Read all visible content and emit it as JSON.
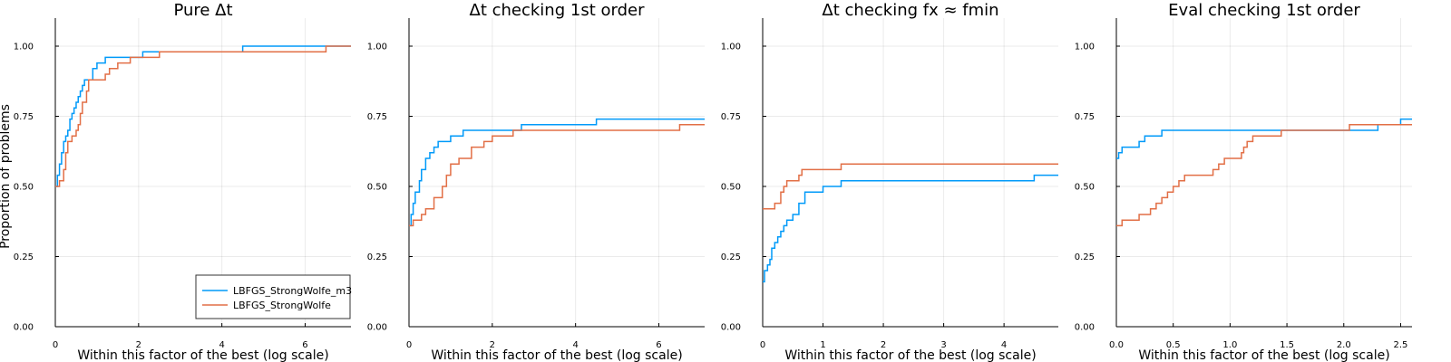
{
  "figure": {
    "ylabel": "Proportion of problems",
    "xlabel": "Within this factor of the best (log scale)",
    "legend": {
      "placement": "bottom-right",
      "entries": [
        "LBFGS_StrongWolfe_m3",
        "LBFGS_StrongWolfe"
      ]
    },
    "colors": {
      "LBFGS_StrongWolfe_m3": "#009af9",
      "LBFGS_StrongWolfe": "#e26f46"
    }
  },
  "chart_data": [
    {
      "type": "line",
      "title": "Pure Δt",
      "xlim": [
        0,
        7.1
      ],
      "ylim": [
        0,
        1.1
      ],
      "xticks": [
        0,
        2,
        4,
        6
      ],
      "xtick_labels": [
        "0",
        "2",
        "4",
        "6"
      ],
      "yticks": [
        0,
        0.25,
        0.5,
        0.75,
        1.0
      ],
      "ytick_labels": [
        "0.00",
        "0.25",
        "0.50",
        "0.75",
        "1.00"
      ],
      "grid": true,
      "series": [
        {
          "name": "LBFGS_StrongWolfe_m3",
          "color": "#009af9",
          "points": [
            [
              0,
              0.5
            ],
            [
              0.05,
              0.54
            ],
            [
              0.1,
              0.58
            ],
            [
              0.15,
              0.62
            ],
            [
              0.2,
              0.66
            ],
            [
              0.25,
              0.68
            ],
            [
              0.3,
              0.7
            ],
            [
              0.35,
              0.74
            ],
            [
              0.4,
              0.76
            ],
            [
              0.45,
              0.78
            ],
            [
              0.5,
              0.8
            ],
            [
              0.55,
              0.82
            ],
            [
              0.6,
              0.84
            ],
            [
              0.65,
              0.86
            ],
            [
              0.7,
              0.88
            ],
            [
              0.9,
              0.92
            ],
            [
              1.0,
              0.94
            ],
            [
              1.2,
              0.96
            ],
            [
              1.6,
              0.96
            ],
            [
              2.1,
              0.98
            ],
            [
              4.5,
              1.0
            ],
            [
              7.1,
              1.0
            ]
          ]
        },
        {
          "name": "LBFGS_StrongWolfe",
          "color": "#e26f46",
          "points": [
            [
              0,
              0.5
            ],
            [
              0.1,
              0.52
            ],
            [
              0.2,
              0.56
            ],
            [
              0.25,
              0.62
            ],
            [
              0.3,
              0.66
            ],
            [
              0.4,
              0.68
            ],
            [
              0.5,
              0.7
            ],
            [
              0.55,
              0.72
            ],
            [
              0.6,
              0.76
            ],
            [
              0.65,
              0.8
            ],
            [
              0.75,
              0.84
            ],
            [
              0.8,
              0.88
            ],
            [
              1.2,
              0.9
            ],
            [
              1.3,
              0.92
            ],
            [
              1.5,
              0.94
            ],
            [
              1.8,
              0.96
            ],
            [
              2.5,
              0.98
            ],
            [
              6.5,
              1.0
            ],
            [
              7.1,
              1.0
            ]
          ]
        }
      ]
    },
    {
      "type": "line",
      "title": "Δt checking 1st order",
      "xlim": [
        0,
        7.1
      ],
      "ylim": [
        0,
        1.1
      ],
      "xticks": [
        0,
        2,
        4,
        6
      ],
      "xtick_labels": [
        "0",
        "2",
        "4",
        "6"
      ],
      "yticks": [
        0,
        0.25,
        0.5,
        0.75,
        1.0
      ],
      "ytick_labels": [
        "0.00",
        "0.25",
        "0.50",
        "0.75",
        "1.00"
      ],
      "grid": true,
      "series": [
        {
          "name": "LBFGS_StrongWolfe_m3",
          "color": "#009af9",
          "points": [
            [
              0,
              0.36
            ],
            [
              0.05,
              0.4
            ],
            [
              0.1,
              0.44
            ],
            [
              0.15,
              0.48
            ],
            [
              0.25,
              0.52
            ],
            [
              0.3,
              0.56
            ],
            [
              0.4,
              0.6
            ],
            [
              0.5,
              0.62
            ],
            [
              0.6,
              0.64
            ],
            [
              0.7,
              0.66
            ],
            [
              1.0,
              0.68
            ],
            [
              1.3,
              0.7
            ],
            [
              2.7,
              0.72
            ],
            [
              4.5,
              0.74
            ],
            [
              7.1,
              0.74
            ]
          ]
        },
        {
          "name": "LBFGS_StrongWolfe",
          "color": "#e26f46",
          "points": [
            [
              0,
              0.36
            ],
            [
              0.1,
              0.38
            ],
            [
              0.3,
              0.4
            ],
            [
              0.4,
              0.42
            ],
            [
              0.6,
              0.46
            ],
            [
              0.8,
              0.5
            ],
            [
              0.9,
              0.54
            ],
            [
              1.0,
              0.58
            ],
            [
              1.2,
              0.6
            ],
            [
              1.5,
              0.64
            ],
            [
              1.8,
              0.66
            ],
            [
              2.0,
              0.68
            ],
            [
              2.5,
              0.7
            ],
            [
              6.5,
              0.72
            ],
            [
              7.1,
              0.72
            ]
          ]
        }
      ]
    },
    {
      "type": "line",
      "title": "Δt checking fx ≈ fmin",
      "xlim": [
        0,
        4.9
      ],
      "ylim": [
        0,
        1.1
      ],
      "xticks": [
        0,
        1,
        2,
        3,
        4
      ],
      "xtick_labels": [
        "0",
        "1",
        "2",
        "3",
        "4"
      ],
      "yticks": [
        0,
        0.25,
        0.5,
        0.75,
        1.0
      ],
      "ytick_labels": [
        "0.00",
        "0.25",
        "0.50",
        "0.75",
        "1.00"
      ],
      "grid": true,
      "series": [
        {
          "name": "LBFGS_StrongWolfe_m3",
          "color": "#009af9",
          "points": [
            [
              0,
              0.16
            ],
            [
              0.03,
              0.2
            ],
            [
              0.08,
              0.22
            ],
            [
              0.12,
              0.24
            ],
            [
              0.15,
              0.28
            ],
            [
              0.2,
              0.3
            ],
            [
              0.25,
              0.32
            ],
            [
              0.3,
              0.34
            ],
            [
              0.35,
              0.36
            ],
            [
              0.4,
              0.38
            ],
            [
              0.5,
              0.4
            ],
            [
              0.6,
              0.44
            ],
            [
              0.7,
              0.48
            ],
            [
              1.0,
              0.5
            ],
            [
              1.3,
              0.52
            ],
            [
              4.5,
              0.54
            ],
            [
              4.9,
              0.54
            ]
          ]
        },
        {
          "name": "LBFGS_StrongWolfe",
          "color": "#e26f46",
          "points": [
            [
              0,
              0.42
            ],
            [
              0.2,
              0.44
            ],
            [
              0.3,
              0.48
            ],
            [
              0.35,
              0.5
            ],
            [
              0.4,
              0.52
            ],
            [
              0.6,
              0.54
            ],
            [
              0.65,
              0.56
            ],
            [
              1.3,
              0.58
            ],
            [
              4.9,
              0.58
            ]
          ]
        }
      ]
    },
    {
      "type": "line",
      "title": "Eval checking 1st order",
      "xlim": [
        0,
        2.6
      ],
      "ylim": [
        0,
        1.1
      ],
      "xticks": [
        0,
        0.5,
        1.0,
        1.5,
        2.0,
        2.5
      ],
      "xtick_labels": [
        "0.0",
        "0.5",
        "1.0",
        "1.5",
        "2.0",
        "2.5"
      ],
      "yticks": [
        0,
        0.25,
        0.5,
        0.75,
        1.0
      ],
      "ytick_labels": [
        "0.00",
        "0.25",
        "0.50",
        "0.75",
        "1.00"
      ],
      "grid": true,
      "series": [
        {
          "name": "LBFGS_StrongWolfe_m3",
          "color": "#009af9",
          "points": [
            [
              0,
              0.6
            ],
            [
              0.02,
              0.62
            ],
            [
              0.05,
              0.64
            ],
            [
              0.2,
              0.66
            ],
            [
              0.25,
              0.68
            ],
            [
              0.4,
              0.7
            ],
            [
              2.3,
              0.72
            ],
            [
              2.5,
              0.74
            ],
            [
              2.6,
              0.74
            ]
          ]
        },
        {
          "name": "LBFGS_StrongWolfe",
          "color": "#e26f46",
          "points": [
            [
              0,
              0.36
            ],
            [
              0.05,
              0.38
            ],
            [
              0.2,
              0.4
            ],
            [
              0.3,
              0.42
            ],
            [
              0.35,
              0.44
            ],
            [
              0.4,
              0.46
            ],
            [
              0.45,
              0.48
            ],
            [
              0.5,
              0.5
            ],
            [
              0.55,
              0.52
            ],
            [
              0.6,
              0.54
            ],
            [
              0.85,
              0.56
            ],
            [
              0.9,
              0.58
            ],
            [
              0.95,
              0.6
            ],
            [
              1.1,
              0.62
            ],
            [
              1.12,
              0.64
            ],
            [
              1.15,
              0.66
            ],
            [
              1.2,
              0.68
            ],
            [
              1.45,
              0.7
            ],
            [
              2.05,
              0.72
            ],
            [
              2.6,
              0.72
            ]
          ]
        }
      ]
    }
  ]
}
